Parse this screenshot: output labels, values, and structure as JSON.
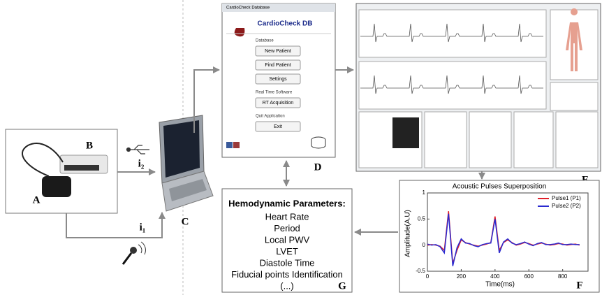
{
  "labels": {
    "A": "A",
    "B": "B",
    "C": "C",
    "D": "D",
    "E": "E",
    "F": "F",
    "G": "G",
    "i2": "i₂",
    "i1": "i₁"
  },
  "database_window": {
    "window_title": "CardioCheck Database",
    "app_title": "CardioCheck DB",
    "sections": [
      {
        "heading": "Database",
        "buttons": [
          "New Patient",
          "Find Patient",
          "Settings"
        ]
      },
      {
        "heading": "Real Time Software",
        "buttons": [
          "RT Acquisition"
        ]
      },
      {
        "heading": "Quit Application",
        "buttons": [
          "Exit"
        ]
      }
    ]
  },
  "parameters": {
    "title": "Hemodynamic Parameters:",
    "items": [
      "Heart Rate",
      "Period",
      "Local PWV",
      "LVET",
      "Diastole Time",
      "Fiducial points Identification",
      "(...)"
    ]
  },
  "chart_data": {
    "type": "line",
    "title": "Acoustic Pulses Superposition",
    "x_label": "Time(ms)",
    "y_label": "Amplitude(A.U)",
    "x": [
      0,
      25,
      50,
      75,
      100,
      125,
      150,
      175,
      200,
      225,
      250,
      275,
      300,
      325,
      350,
      375,
      400,
      425,
      450,
      475,
      500,
      525,
      550,
      575,
      600,
      625,
      650,
      675,
      700,
      725,
      750,
      775,
      800,
      825,
      850,
      875,
      900
    ],
    "series": [
      {
        "name": "Pulse1 (P1)",
        "color": "#e0202a",
        "values": [
          0,
          0.01,
          0,
          -0.02,
          -0.1,
          0.65,
          -0.35,
          -0.1,
          0.1,
          0.05,
          0.02,
          0,
          -0.02,
          0,
          0.02,
          0.05,
          0.55,
          -0.1,
          0.05,
          0.1,
          0.05,
          0,
          0.02,
          0.05,
          0.03,
          0,
          0.02,
          0.04,
          0.02,
          0,
          0.01,
          0.03,
          0.02,
          0,
          0.01,
          0.02,
          0
        ]
      },
      {
        "name": "Pulse2 (P2)",
        "color": "#2a2ad0",
        "values": [
          0.02,
          0,
          0.01,
          -0.03,
          -0.15,
          0.6,
          -0.4,
          -0.05,
          0.12,
          0.04,
          0.03,
          -0.01,
          -0.03,
          0.01,
          0.03,
          0.04,
          0.5,
          -0.15,
          0.06,
          0.12,
          0.04,
          0.01,
          0.03,
          0.06,
          0.02,
          -0.01,
          0.03,
          0.05,
          0.01,
          0.01,
          0.02,
          0.04,
          0.01,
          0.01,
          0.02,
          0.01,
          0.01
        ]
      }
    ],
    "xlim": [
      0,
      950
    ],
    "ylim": [
      -0.5,
      1
    ],
    "xticks": [
      0,
      200,
      400,
      600,
      800
    ],
    "yticks": [
      -0.5,
      0,
      0.5,
      1
    ]
  }
}
